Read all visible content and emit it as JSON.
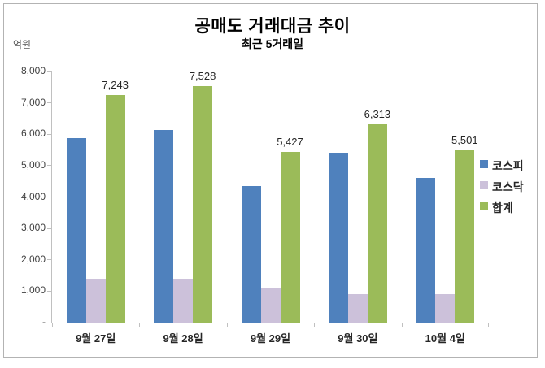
{
  "chart_data": {
    "type": "bar",
    "title": "공매도 거래대금 추이",
    "subtitle": "최근 5거래일",
    "unit_label": "억원",
    "categories": [
      "9월 27일",
      "9월 28일",
      "9월 29일",
      "9월 30일",
      "10월 4일"
    ],
    "series": [
      {
        "name": "코스피",
        "color": "#4F81BD",
        "values": [
          5870,
          6140,
          4350,
          5410,
          4600
        ],
        "labeled": false
      },
      {
        "name": "코스닥",
        "color": "#CCC1DA",
        "values": [
          1373,
          1388,
          1077,
          903,
          901
        ],
        "labeled": false
      },
      {
        "name": "합계",
        "color": "#9BBB59",
        "values": [
          7243,
          7528,
          5427,
          6313,
          5501
        ],
        "labeled": true,
        "data_labels": [
          "7,243",
          "7,528",
          "5,427",
          "6,313",
          "5,501"
        ]
      }
    ],
    "y_axis": {
      "min": 0,
      "max": 8000,
      "tick_step": 1000,
      "tick_labels": [
        "-",
        "1,000",
        "2,000",
        "3,000",
        "4,000",
        "5,000",
        "6,000",
        "7,000",
        "8,000"
      ]
    },
    "legend": {
      "position": "right"
    },
    "grid": false,
    "axis_color": "#c0c0c0",
    "text_color": "#404040"
  }
}
